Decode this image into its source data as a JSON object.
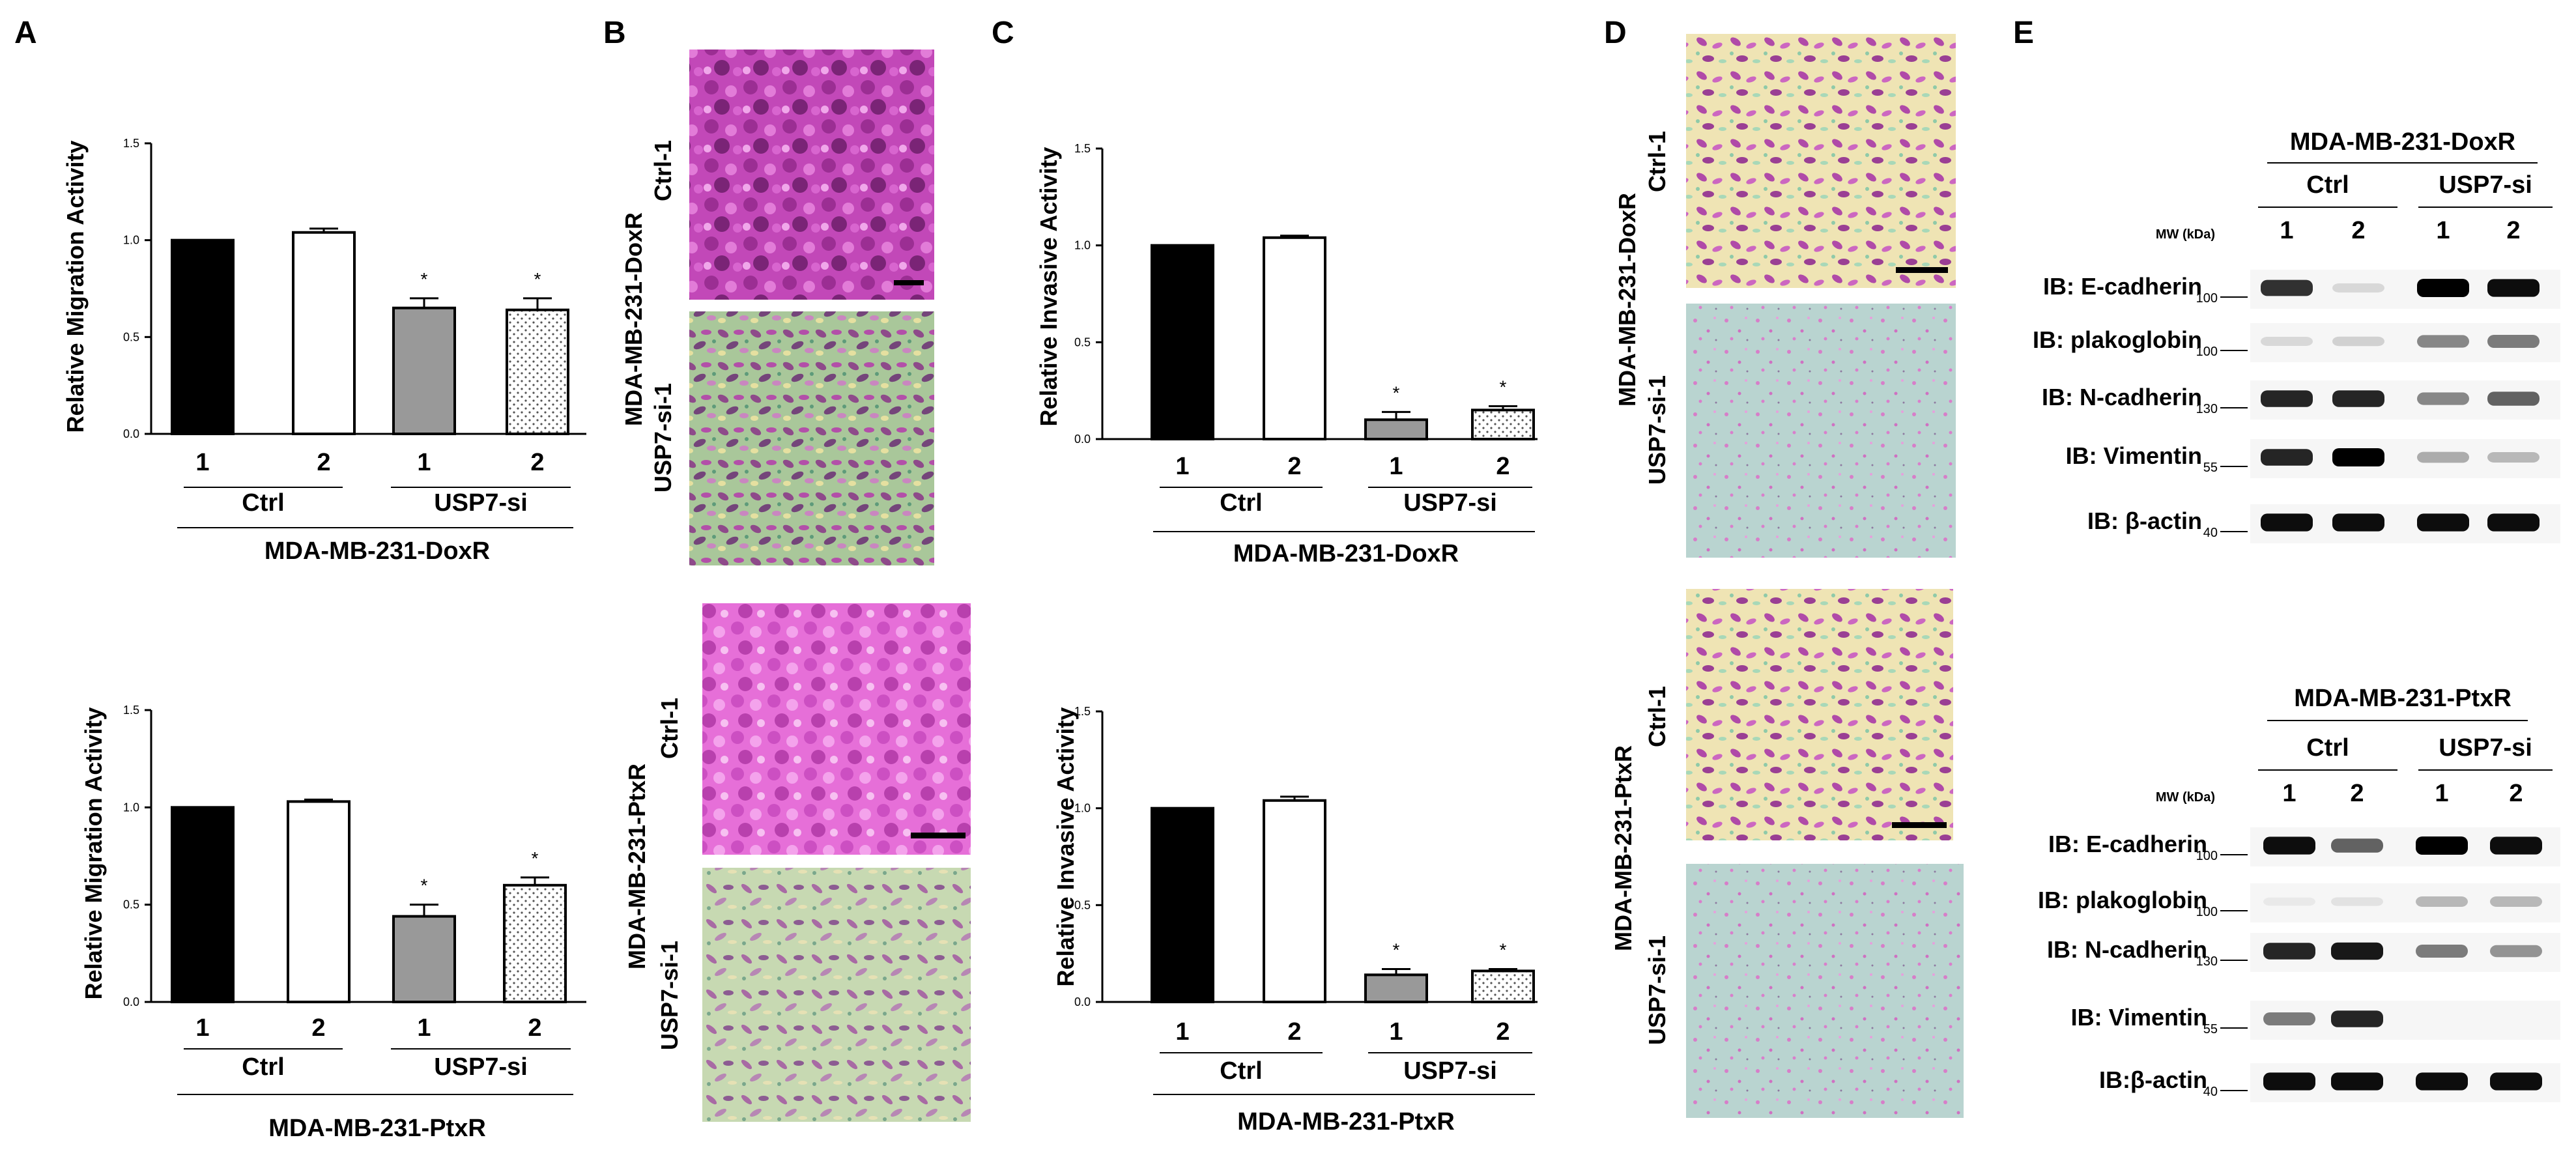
{
  "panels": {
    "A": {
      "letter": "A"
    },
    "B": {
      "letter": "B"
    },
    "C": {
      "letter": "C"
    },
    "D": {
      "letter": "D"
    },
    "E": {
      "letter": "E"
    }
  },
  "chart_data": [
    {
      "id": "A_top",
      "type": "bar",
      "title": "",
      "ylabel": "Relative Migration Activity",
      "xlabel": "",
      "ylim": [
        0,
        1.5
      ],
      "yticks": [
        "0.0",
        "0.5",
        "1.0",
        "1.5"
      ],
      "categories": [
        "1",
        "2",
        "1",
        "2"
      ],
      "values": [
        1.0,
        1.04,
        0.65,
        0.64
      ],
      "errors": [
        0,
        0.02,
        0.05,
        0.06
      ],
      "fills": [
        "black",
        "white",
        "gray",
        "dots"
      ],
      "sig": [
        "",
        "",
        "*",
        "*"
      ],
      "group_labels": [
        "Ctrl",
        "USP7-si"
      ],
      "cell_line": "MDA-MB-231-DoxR"
    },
    {
      "id": "A_bottom",
      "type": "bar",
      "title": "",
      "ylabel": "Relative Migration Activity",
      "xlabel": "",
      "ylim": [
        0,
        1.5
      ],
      "yticks": [
        "0.0",
        "0.5",
        "1.0",
        "1.5"
      ],
      "categories": [
        "1",
        "2",
        "1",
        "2"
      ],
      "values": [
        1.0,
        1.03,
        0.44,
        0.6
      ],
      "errors": [
        0,
        0.01,
        0.06,
        0.04
      ],
      "fills": [
        "black",
        "white",
        "gray",
        "dots"
      ],
      "sig": [
        "",
        "",
        "*",
        "*"
      ],
      "group_labels": [
        "Ctrl",
        "USP7-si"
      ],
      "cell_line": "MDA-MB-231-PtxR"
    },
    {
      "id": "C_top",
      "type": "bar",
      "title": "",
      "ylabel": "Relative Invasive Activity",
      "xlabel": "",
      "ylim": [
        0,
        1.5
      ],
      "yticks": [
        "0.0",
        "0.5",
        "1.0",
        "1.5"
      ],
      "categories": [
        "1",
        "2",
        "1",
        "2"
      ],
      "values": [
        1.0,
        1.04,
        0.1,
        0.15
      ],
      "errors": [
        0,
        0.01,
        0.04,
        0.02
      ],
      "fills": [
        "black",
        "white",
        "gray",
        "dots"
      ],
      "sig": [
        "",
        "",
        "*",
        "*"
      ],
      "group_labels": [
        "Ctrl",
        "USP7-si"
      ],
      "cell_line": "MDA-MB-231-DoxR"
    },
    {
      "id": "C_bottom",
      "type": "bar",
      "title": "",
      "ylabel": "Relative Invasive Activity",
      "xlabel": "",
      "ylim": [
        0,
        1.5
      ],
      "yticks": [
        "0.0",
        "0.5",
        "1.0",
        "1.5"
      ],
      "categories": [
        "1",
        "2",
        "1",
        "2"
      ],
      "values": [
        1.0,
        1.04,
        0.14,
        0.16
      ],
      "errors": [
        0,
        0.02,
        0.03,
        0.01
      ],
      "fills": [
        "black",
        "white",
        "gray",
        "dots"
      ],
      "sig": [
        "",
        "",
        "*",
        "*"
      ],
      "group_labels": [
        "Ctrl",
        "USP7-si"
      ],
      "cell_line": "MDA-MB-231-PtxR"
    }
  ],
  "micrographs": {
    "B": {
      "top_cell_line": "MDA-MB-231-DoxR",
      "bottom_cell_line": "MDA-MB-231-PtxR",
      "ctrl_label": "Ctrl-1",
      "si_label": "USP7-si-1"
    },
    "D": {
      "top_cell_line": "MDA-MB-231-DoxR",
      "bottom_cell_line": "MDA-MB-231-PtxR",
      "ctrl_label": "Ctrl-1",
      "si_label": "USP7-si-1"
    }
  },
  "blots": {
    "top": {
      "title": "MDA-MB-231-DoxR",
      "group_ctrl": "Ctrl",
      "group_si": "USP7-si",
      "lanes": [
        "1",
        "2",
        "1",
        "2"
      ],
      "mw_label": "MW (kDa)",
      "rows": [
        {
          "label": "IB: E-cadherin",
          "mw": "100",
          "intensity": [
            0.8,
            0.12,
            1.0,
            0.95
          ]
        },
        {
          "label": "IB: plakoglobin",
          "mw": "100",
          "intensity": [
            0.12,
            0.15,
            0.45,
            0.5
          ]
        },
        {
          "label": "IB: N-cadherin",
          "mw": "130",
          "intensity": [
            0.85,
            0.85,
            0.45,
            0.6
          ]
        },
        {
          "label": "IB: Vimentin",
          "mw": "55",
          "intensity": [
            0.85,
            1.0,
            0.3,
            0.25
          ]
        },
        {
          "label": "IB: β-actin",
          "mw": "40",
          "intensity": [
            0.95,
            0.95,
            0.95,
            0.95
          ]
        }
      ]
    },
    "bottom": {
      "title": "MDA-MB-231-PtxR",
      "group_ctrl": "Ctrl",
      "group_si": "USP7-si",
      "lanes": [
        "1",
        "2",
        "1",
        "2"
      ],
      "mw_label": "MW (kDa)",
      "rows": [
        {
          "label": "IB: E-cadherin",
          "mw": "100",
          "intensity": [
            0.95,
            0.6,
            1.0,
            0.95
          ]
        },
        {
          "label": "IB: plakoglobin",
          "mw": "100",
          "intensity": [
            0.05,
            0.08,
            0.25,
            0.25
          ]
        },
        {
          "label": "IB: N-cadherin",
          "mw": "130",
          "intensity": [
            0.85,
            0.9,
            0.5,
            0.4
          ]
        },
        {
          "label": "IB: Vimentin",
          "mw": "55",
          "intensity": [
            0.5,
            0.85,
            0.0,
            0.0
          ]
        },
        {
          "label": "IB:β-actin",
          "mw": "40",
          "intensity": [
            0.95,
            0.95,
            0.95,
            0.95
          ]
        }
      ]
    }
  }
}
